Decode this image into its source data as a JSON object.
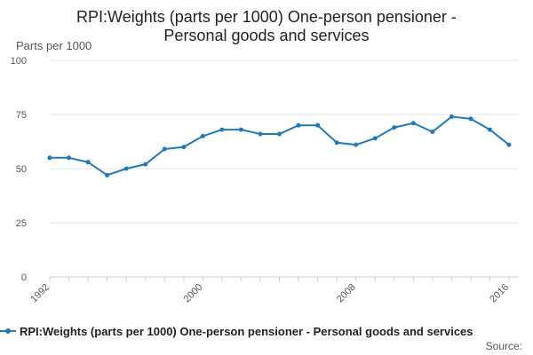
{
  "chart_data": {
    "type": "line",
    "title_line1": "RPI:Weights (parts per 1000) One-person pensioner -",
    "title_line2": "Personal goods and services",
    "ylabel": "Parts per 1000",
    "ylim": [
      0,
      100
    ],
    "yticks": [
      "0",
      "25",
      "50",
      "75",
      "100"
    ],
    "xlim": [
      1992,
      2016
    ],
    "xticks": [
      "1992",
      "2000",
      "2008",
      "2016"
    ],
    "grid": "horizontal",
    "legend_position": "bottom",
    "series": [
      {
        "name": "RPI:Weights (parts per 1000) One-person pensioner - Personal goods and services",
        "color": "#1f7ab8",
        "x": [
          1992,
          1993,
          1994,
          1995,
          1996,
          1997,
          1998,
          1999,
          2000,
          2001,
          2002,
          2003,
          2004,
          2005,
          2006,
          2007,
          2008,
          2009,
          2010,
          2011,
          2012,
          2013,
          2014,
          2015,
          2016
        ],
        "values": [
          55,
          55,
          53,
          47,
          50,
          52,
          59,
          60,
          65,
          68,
          68,
          66,
          66,
          70,
          70,
          62,
          61,
          64,
          69,
          71,
          67,
          74,
          73,
          68,
          61
        ]
      }
    ],
    "source_label": "Source:"
  }
}
